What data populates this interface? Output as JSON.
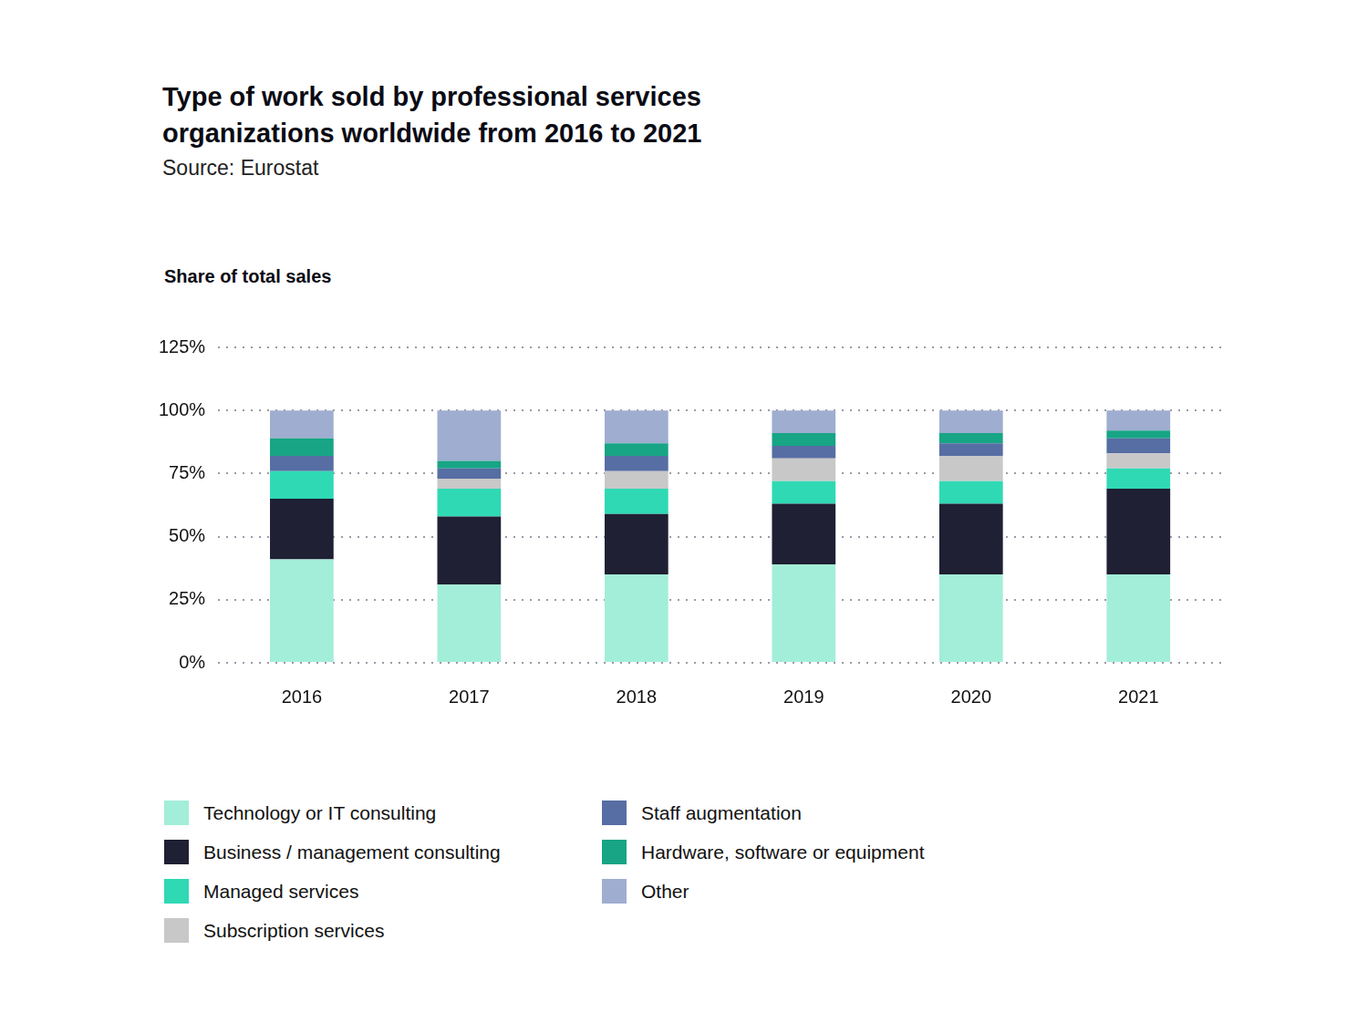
{
  "chart_data": {
    "type": "bar",
    "title": "Type of work sold by professional services organizations worldwide from 2016 to 2021",
    "subtitle": "Source: Eurostat",
    "y_label": "Share of total sales",
    "categories": [
      "2016",
      "2017",
      "2018",
      "2019",
      "2020",
      "2021"
    ],
    "series": [
      {
        "name": "Technology or IT consulting",
        "color": "#a3eed8",
        "values": [
          41,
          31,
          35,
          39,
          35,
          35
        ]
      },
      {
        "name": "Business / management consulting",
        "color": "#1f2033",
        "values": [
          24,
          27,
          24,
          24,
          28,
          34
        ]
      },
      {
        "name": "Managed services",
        "color": "#2fd9b4",
        "values": [
          11,
          11,
          10,
          9,
          9,
          8
        ]
      },
      {
        "name": "Subscription services",
        "color": "#c8c8c8",
        "values": [
          0,
          4,
          7,
          9,
          10,
          6
        ]
      },
      {
        "name": "Staff augmentation",
        "color": "#566ea3",
        "values": [
          6,
          4,
          6,
          5,
          5,
          6
        ]
      },
      {
        "name": "Hardware, software or equipment",
        "color": "#17a585",
        "values": [
          7,
          3,
          5,
          5,
          4,
          3
        ]
      },
      {
        "name": "Other",
        "color": "#9fadd0",
        "values": [
          11,
          20,
          13,
          9,
          9,
          8
        ]
      }
    ],
    "ylim": [
      0,
      125
    ],
    "yticks": [
      {
        "value": 0,
        "label": "0%"
      },
      {
        "value": 25,
        "label": "25%"
      },
      {
        "value": 50,
        "label": "50%"
      },
      {
        "value": 75,
        "label": "75%"
      },
      {
        "value": 100,
        "label": "100%"
      },
      {
        "value": 125,
        "label": "125%"
      }
    ],
    "stacked": true,
    "grid": true,
    "legend": "bottom"
  }
}
